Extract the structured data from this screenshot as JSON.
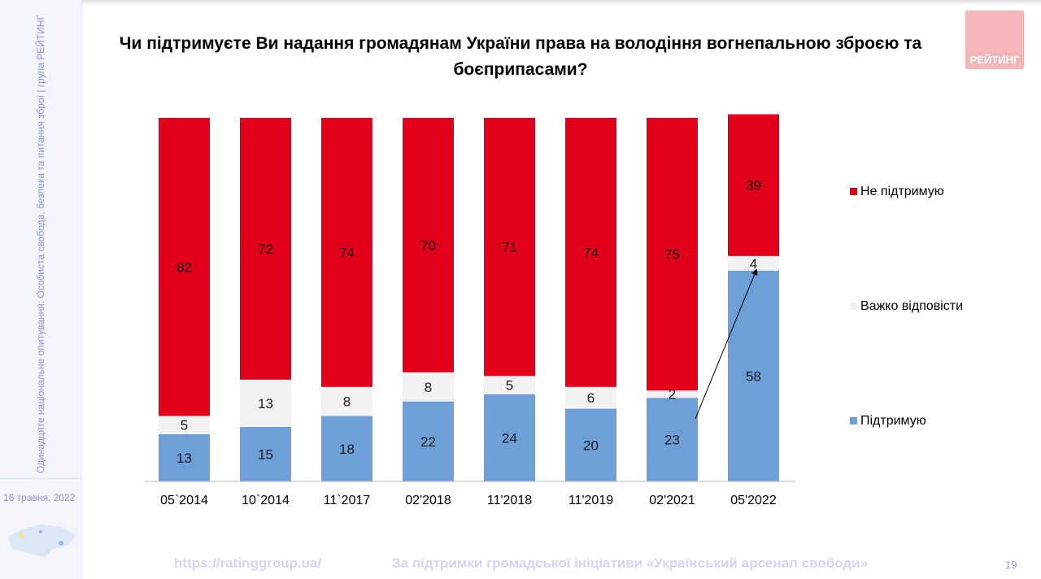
{
  "sidebar": {
    "vertical_text": "Одинадцяте національне опитування: Особиста свобода, безпека та питання зброї | група РЕЙТИНГ",
    "date": "16 травня, 2022"
  },
  "logo": {
    "text": "РЕЙТИНГ"
  },
  "footer": {
    "url": "https://ratinggroup.ua/",
    "note": "За підтримки  громадської ініціативи «Український арсенал свободи»",
    "page": "19"
  },
  "chart_data": {
    "type": "bar",
    "stacked": true,
    "title": "Чи підтримуєте Ви надання громадянам України права на володіння вогнепальною зброєю та боєприпасами?",
    "categories": [
      "05`2014",
      "10`2014",
      "11`2017",
      "02'2018",
      "11'2018",
      "11'2019",
      "02'2021",
      "05'2022"
    ],
    "series": [
      {
        "name": "Підтримую",
        "color": "#6f9fd8",
        "values": [
          13,
          15,
          18,
          22,
          24,
          20,
          23,
          58
        ]
      },
      {
        "name": "Важко відповісти",
        "color": "#f2f2f2",
        "values": [
          5,
          13,
          8,
          8,
          5,
          6,
          2,
          4
        ]
      },
      {
        "name": "Не підтримую",
        "color": "#e3001b",
        "values": [
          82,
          72,
          74,
          70,
          71,
          74,
          75,
          39
        ]
      }
    ],
    "legend": "right",
    "ylim": [
      0,
      100
    ],
    "grid": false
  }
}
